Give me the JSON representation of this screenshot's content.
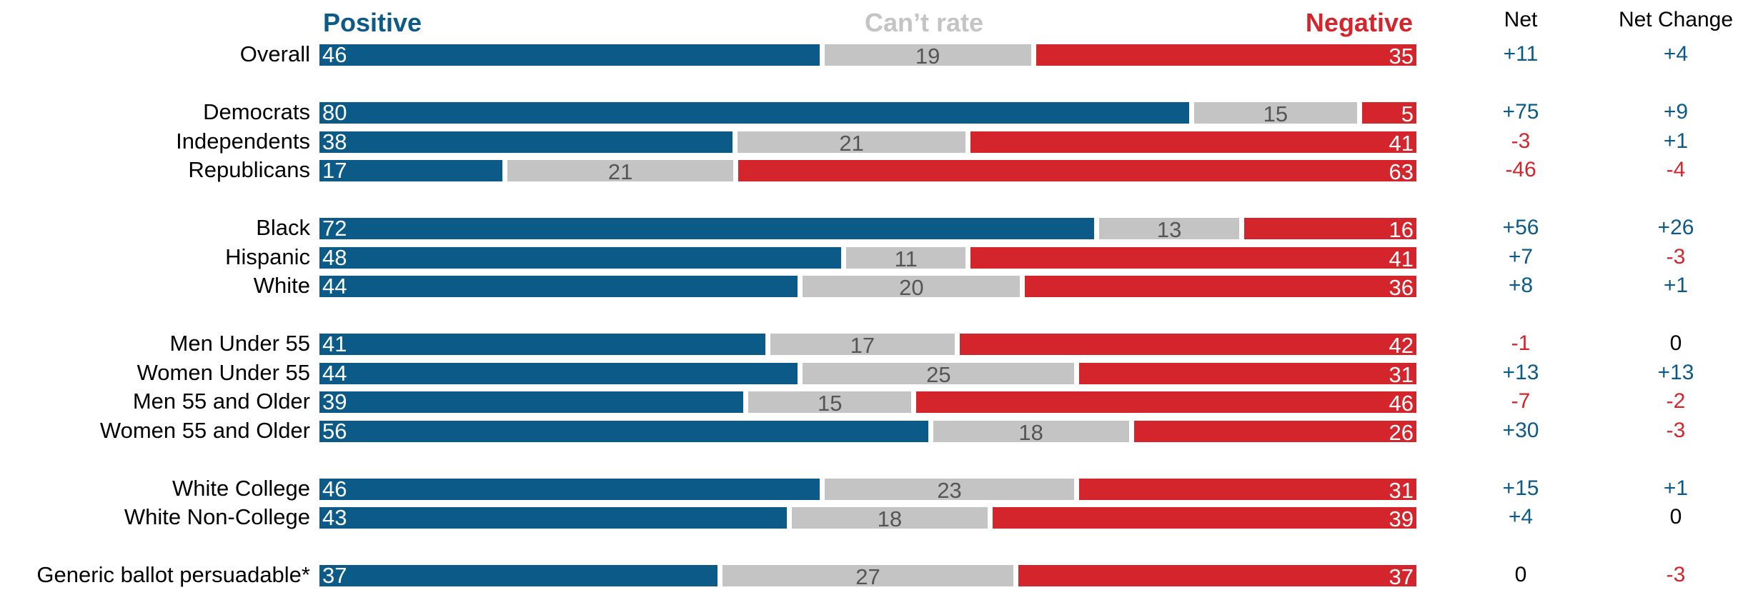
{
  "headers": {
    "positive": "Positive",
    "cant_rate": "Can’t rate",
    "negative": "Negative",
    "net": "Net",
    "net_change": "Net Change"
  },
  "colors": {
    "positive": "#0b5a87",
    "cant_rate": "#c4c4c4",
    "negative": "#d4252c",
    "cant_text": "#555555",
    "neutral_text": "#000000"
  },
  "chart_data": {
    "type": "bar",
    "stacked": true,
    "orientation": "horizontal",
    "xlim": [
      0,
      100
    ],
    "categories": [
      "Overall",
      "Democrats",
      "Independents",
      "Republicans",
      "Black",
      "Hispanic",
      "White",
      "Men Under 55",
      "Women Under 55",
      "Men 55 and Older",
      "Women 55 and Older",
      "White College",
      "White Non-College",
      "Generic ballot persuadable*"
    ],
    "series": [
      {
        "name": "Positive",
        "values": [
          46,
          80,
          38,
          17,
          72,
          48,
          44,
          41,
          44,
          39,
          56,
          46,
          43,
          37
        ]
      },
      {
        "name": "Can’t rate",
        "values": [
          19,
          15,
          21,
          21,
          13,
          11,
          20,
          17,
          25,
          15,
          18,
          23,
          18,
          27
        ]
      },
      {
        "name": "Negative",
        "values": [
          35,
          5,
          41,
          63,
          16,
          41,
          36,
          42,
          31,
          46,
          26,
          31,
          39,
          37
        ]
      }
    ],
    "net": [
      "+11",
      "+75",
      "-3",
      "-46",
      "+56",
      "+7",
      "+8",
      "-1",
      "+13",
      "-7",
      "+30",
      "+15",
      "+4",
      "0"
    ],
    "net_change": [
      "+4",
      "+9",
      "+1",
      "-4",
      "+26",
      "-3",
      "+1",
      "0",
      "+13",
      "-2",
      "-3",
      "+1",
      "0",
      "-3"
    ],
    "groups": [
      [
        0
      ],
      [
        1,
        2,
        3
      ],
      [
        4,
        5,
        6
      ],
      [
        7,
        8,
        9,
        10
      ],
      [
        11,
        12
      ],
      [
        13
      ]
    ],
    "legend": "top"
  }
}
